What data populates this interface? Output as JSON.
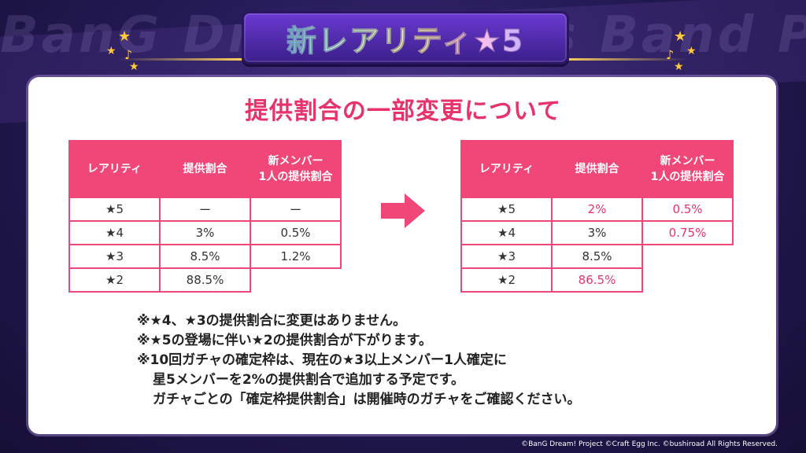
{
  "background": {
    "watermark": "BanG Dream! Girls Band Party!"
  },
  "header": {
    "title": "新レアリティ★5"
  },
  "main": {
    "subtitle": "提供割合の一部変更について",
    "before": {
      "headers": [
        "レアリティ",
        "提供割合",
        "新メンバー1人の提供割合"
      ],
      "header_lines": [
        [
          "レアリティ"
        ],
        [
          "提供割合"
        ],
        [
          "新メンバー",
          "1人の提供割合"
        ]
      ],
      "rows": [
        [
          "★5",
          "ー",
          "ー"
        ],
        [
          "★4",
          "3%",
          "0.5%"
        ],
        [
          "★3",
          "8.5%",
          "1.2%"
        ],
        [
          "★2",
          "88.5%",
          ""
        ]
      ]
    },
    "after": {
      "headers": [
        "レアリティ",
        "提供割合",
        "新メンバー1人の提供割合"
      ],
      "header_lines": [
        [
          "レアリティ"
        ],
        [
          "提供割合"
        ],
        [
          "新メンバー",
          "1人の提供割合"
        ]
      ],
      "rows": [
        [
          "★5",
          "2%",
          "0.5%"
        ],
        [
          "★4",
          "3%",
          "0.75%"
        ],
        [
          "★3",
          "8.5%",
          ""
        ],
        [
          "★2",
          "86.5%",
          ""
        ]
      ]
    },
    "notes": [
      "※★4、★3の提供割合に変更はありません。",
      "※★5の登場に伴い★2の提供割合が下がります。",
      "※10回ガチャの確定枠は、現在の★3以上メンバー1人確定に",
      "星5メンバーを2%の提供割合で追加する予定です。",
      "ガチャごとの「確定枠提供割合」は開催時のガチャをご確認ください。"
    ]
  },
  "footer": {
    "copyright": "©BanG Dream! Project ©Craft Egg Inc. ©bushiroad All Rights Reserved."
  },
  "colors": {
    "accent": "#f04778",
    "highlight_text": "#e8336a",
    "title_bg": "#4a2aa8"
  }
}
